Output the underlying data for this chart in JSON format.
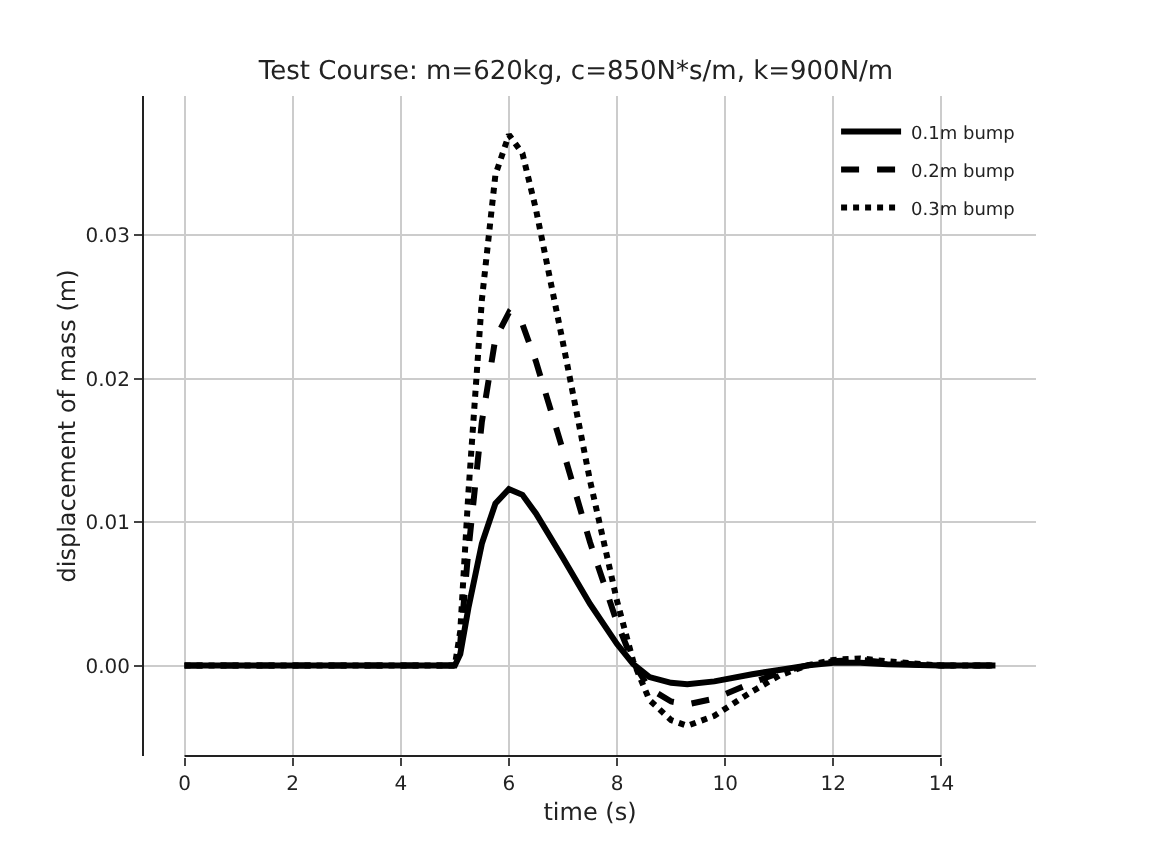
{
  "chart_data": {
    "type": "line",
    "title": "Test Course: m=620kg, c=850N*s/m, k=900N/m",
    "xlabel": "time (s)",
    "ylabel": "displacement of mass (m)",
    "x": [
      0,
      5,
      5.1,
      5.25,
      5.5,
      5.75,
      6,
      6.25,
      6.5,
      7,
      7.5,
      8,
      8.3,
      8.6,
      9,
      9.3,
      9.8,
      10.5,
      11,
      11.5,
      12,
      12.5,
      13,
      14,
      15
    ],
    "series": [
      {
        "name": "0.1m bump",
        "color": "#000000",
        "line_style": "solid",
        "values": [
          0,
          0,
          0.0008,
          0.004,
          0.0085,
          0.0113,
          0.0123,
          0.0119,
          0.0106,
          0.0075,
          0.0043,
          0.0015,
          0.0001,
          -0.0008,
          -0.0012,
          -0.0013,
          -0.0011,
          -0.0006,
          -0.0003,
          0,
          0.0002,
          0.0002,
          0.0001,
          0,
          0
        ]
      },
      {
        "name": "0.2m bump",
        "color": "#000000",
        "line_style": "dashed",
        "values": [
          0,
          0,
          0.0016,
          0.008,
          0.017,
          0.0228,
          0.0246,
          0.0238,
          0.0212,
          0.015,
          0.0086,
          0.003,
          0.0002,
          -0.0016,
          -0.0025,
          -0.0027,
          -0.0023,
          -0.0012,
          -0.0005,
          0,
          0.0003,
          0.0004,
          0.0002,
          0,
          0
        ]
      },
      {
        "name": "0.3m bump",
        "color": "#000000",
        "line_style": "dotted",
        "values": [
          0,
          0,
          0.0024,
          0.012,
          0.0255,
          0.0342,
          0.037,
          0.0357,
          0.0318,
          0.0225,
          0.0129,
          0.0045,
          0.0003,
          -0.0024,
          -0.0038,
          -0.0042,
          -0.0035,
          -0.0018,
          -0.0007,
          0,
          0.0004,
          0.0005,
          0.0003,
          0,
          0
        ]
      }
    ],
    "xlim": [
      -0.75,
      15.75
    ],
    "ylim": [
      -0.0063,
      0.0397
    ],
    "xticks": [
      0,
      2,
      4,
      6,
      8,
      10,
      12,
      14
    ],
    "yticks": [
      {
        "value": 0,
        "label": "0.00"
      },
      {
        "value": 0.01,
        "label": "0.01"
      },
      {
        "value": 0.02,
        "label": "0.02"
      },
      {
        "value": 0.03,
        "label": "0.03"
      }
    ],
    "grid": true,
    "legend": "top right"
  }
}
